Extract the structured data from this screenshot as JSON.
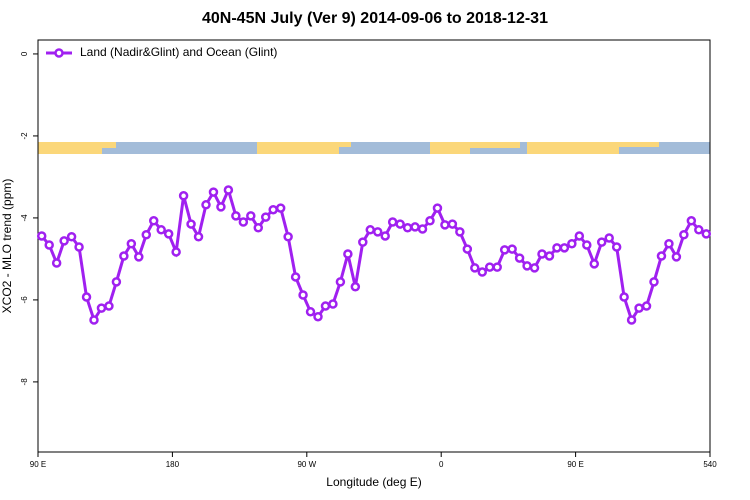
{
  "chart_data": {
    "type": "line",
    "title": "40N-45N July (Ver 9)   2014-09-06 to 2018-12-31",
    "x_label": "Longitude (deg E)",
    "y_label": "XCO2 - MLO trend (ppm)",
    "x": [
      92.5,
      97.5,
      102.5,
      107.5,
      112.5,
      117.5,
      122.5,
      127.5,
      132.5,
      137.5,
      142.5,
      147.5,
      152.5,
      157.5,
      162.5,
      167.5,
      172.5,
      177.5,
      182.5,
      187.5,
      192.5,
      197.5,
      202.5,
      207.5,
      212.5,
      217.5,
      222.5,
      227.5,
      232.5,
      237.5,
      242.5,
      247.5,
      252.5,
      257.5,
      262.5,
      267.5,
      272.5,
      277.5,
      282.5,
      287.5,
      292.5,
      297.5,
      302.5,
      307.5,
      312.5,
      317.5,
      322.5,
      327.5,
      332.5,
      337.5,
      342.5,
      347.5,
      352.5,
      357.5,
      362.5,
      367.5,
      372.5,
      377.5,
      382.5,
      387.5,
      392.5,
      397.5,
      402.5,
      407.5,
      412.5,
      417.5,
      422.5,
      427.5,
      432.5,
      437.5,
      442.5,
      447.5,
      452.5,
      457.5,
      462.5,
      467.5,
      472.5,
      477.5,
      482.5,
      487.5,
      492.5,
      497.5,
      502.5,
      507.5,
      512.5,
      517.5,
      522.5,
      527.5,
      532.5,
      537.5
    ],
    "series": [
      {
        "name": "Land (Nadir&Glint) and Ocean (Glint)",
        "color": "#a020f0",
        "values": [
          -4.44,
          -4.66,
          -5.1,
          -4.56,
          -4.46,
          -4.71,
          -5.93,
          -6.49,
          -6.2,
          -6.15,
          -5.56,
          -4.93,
          -4.63,
          -4.95,
          -4.41,
          -4.07,
          -4.29,
          -4.39,
          -4.83,
          -3.46,
          -4.15,
          -4.46,
          -3.68,
          -3.37,
          -3.73,
          -3.32,
          -3.95,
          -4.1,
          -3.95,
          -4.24,
          -3.98,
          -3.8,
          -3.76,
          -4.46,
          -5.44,
          -5.88,
          -6.29,
          -6.41,
          -6.15,
          -6.1,
          -5.56,
          -4.88,
          -5.68,
          -4.59,
          -4.29,
          -4.34,
          -4.44,
          -4.1,
          -4.15,
          -4.24,
          -4.22,
          -4.27,
          -4.07,
          -3.76,
          -4.17,
          -4.15,
          -4.34,
          -4.76,
          -5.22,
          -5.32,
          -5.2,
          -5.2,
          -4.78,
          -4.76,
          -4.98,
          -5.17,
          -5.22,
          -4.88,
          -4.93,
          -4.73,
          -4.73,
          -4.63,
          -4.44,
          -4.66,
          -5.12,
          -4.59,
          -4.49,
          -4.71,
          -5.93,
          -6.49,
          -6.2,
          -6.15,
          -5.56,
          -4.93,
          -4.63,
          -4.95,
          -4.41,
          -4.07,
          -4.29,
          -4.39
        ]
      }
    ],
    "xlim": [
      90,
      540
    ],
    "xticks": [
      {
        "value": 90,
        "label": "90 E"
      },
      180,
      {
        "value": 270,
        "label": "90 W"
      },
      {
        "value": 360,
        "label": "0"
      },
      {
        "value": 450,
        "label": "90 E"
      },
      540
    ],
    "ylim": [
      -9.71,
      0.34
    ],
    "yticks": [
      0,
      -2,
      -4,
      -6,
      -8
    ],
    "legend": "top-left"
  }
}
